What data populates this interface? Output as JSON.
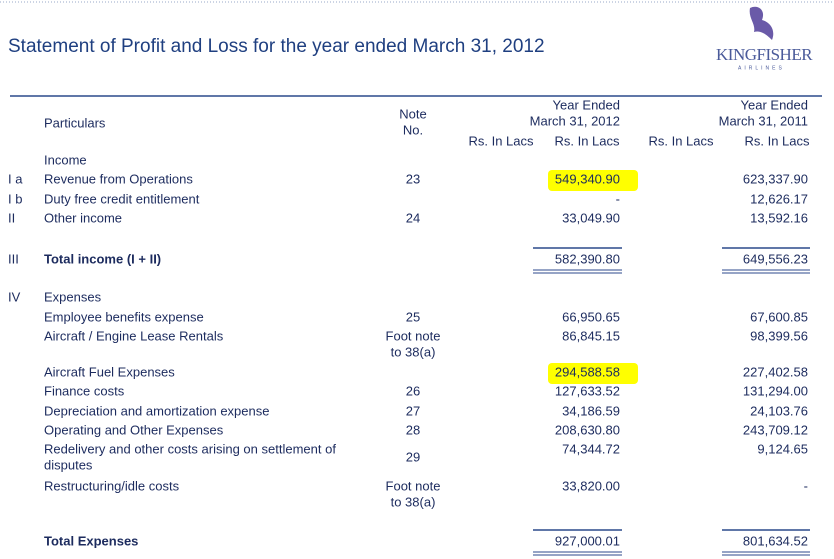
{
  "header": {
    "title": "Statement of Profit and Loss for the year ended March 31, 2012",
    "logo": "KINGFISHER",
    "logo_sub": "AIRLINES"
  },
  "table": {
    "columns": {
      "particulars": "Particulars",
      "note": [
        "Note",
        "No."
      ],
      "year1": [
        "Year Ended",
        "March 31, 2012"
      ],
      "year2": [
        "Year Ended",
        "March 31, 2011"
      ],
      "units": [
        "Rs. In Lacs",
        "Rs. In Lacs",
        "Rs. In Lacs",
        "Rs. In Lacs"
      ]
    },
    "rows": [
      {
        "label": "Income",
        "style": "heading"
      },
      {
        "num": "I a",
        "label": "Revenue from Operations",
        "note": "23",
        "y2012": "549,340.90",
        "y2011": "623,337.90",
        "highlight": true
      },
      {
        "num": "I b",
        "label": "Duty free credit entitlement",
        "y2012": "-",
        "y2011": "12,626.17"
      },
      {
        "num": "II",
        "label": "Other income",
        "note": "24",
        "y2012": "33,049.90",
        "y2011": "13,592.16"
      },
      {
        "num": "III",
        "label": "Total income (I + II)",
        "y2012": "582,390.80",
        "y2011": "649,556.23",
        "style": "total"
      },
      {
        "num": "IV",
        "label": "Expenses",
        "style": "heading"
      },
      {
        "label": "Employee benefits expense",
        "note": "25",
        "y2012": "66,950.65",
        "y2011": "67,600.85"
      },
      {
        "label": "Aircraft / Engine Lease Rentals",
        "note": [
          "Foot note",
          "to 38(a)"
        ],
        "y2012": "86,845.15",
        "y2011": "98,399.56"
      },
      {
        "label": "Aircraft Fuel Expenses",
        "y2012": "294,588.58",
        "y2011": "227,402.58",
        "highlight": true
      },
      {
        "label": "Finance costs",
        "note": "26",
        "y2012": "127,633.52",
        "y2011": "131,294.00"
      },
      {
        "label": "Depreciation and amortization expense",
        "note": "27",
        "y2012": "34,186.59",
        "y2011": "24,103.76"
      },
      {
        "label": "Operating and Other Expenses",
        "note": "28",
        "y2012": "208,630.80",
        "y2011": "243,709.12"
      },
      {
        "label": [
          "Redelivery and other costs arising on settlement of",
          "disputes"
        ],
        "note": "29",
        "y2012": "74,344.72",
        "y2011": "9,124.65"
      },
      {
        "label": "Restructuring/idle costs",
        "note": [
          "Foot note",
          "to 38(a)"
        ],
        "y2012": "33,820.00",
        "y2011": "-"
      },
      {
        "label": "Total Expenses",
        "y2012": "927,000.01",
        "y2011": "801,634.52",
        "style": "total"
      }
    ]
  }
}
